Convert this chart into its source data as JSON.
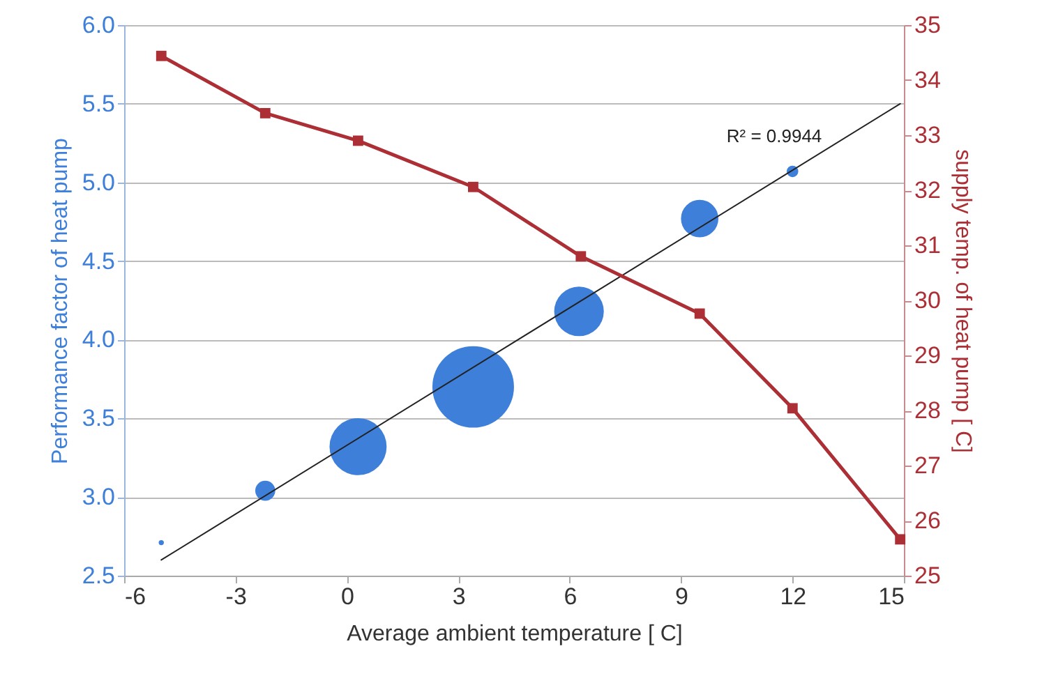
{
  "chart_data": {
    "type": "bubble",
    "xlabel": "Average ambient temperature [ C]",
    "ylabel": "Performance factor of heat pump",
    "y2label": "supply temp. of heat pump [ C]",
    "xlim": [
      -6,
      15
    ],
    "xticks": [
      -6,
      -3,
      0,
      3,
      6,
      9,
      12,
      15
    ],
    "ylim": [
      2.5,
      6.0
    ],
    "yticks": [
      {
        "value": 2.5,
        "label": "2.5"
      },
      {
        "value": 3,
        "label": "3.0"
      },
      {
        "value": 3.5,
        "label": "3.5"
      },
      {
        "value": 4,
        "label": "4.0"
      },
      {
        "value": 4.5,
        "label": "4.5"
      },
      {
        "value": 5,
        "label": "5.0"
      },
      {
        "value": 5.5,
        "label": "5.5"
      },
      {
        "value": 6,
        "label": "6.0"
      }
    ],
    "y2lim": [
      25,
      35
    ],
    "y2ticks": [
      25,
      26,
      27,
      28,
      29,
      30,
      31,
      32,
      33,
      34,
      35
    ],
    "grid": "y",
    "legend": false,
    "series": [
      {
        "color": "#3d7fd9",
        "marker": "circle",
        "x": [
          -5,
          -2.2,
          0.3,
          3.4,
          6.25,
          9.5,
          12
        ],
        "values": [
          2.71,
          3.04,
          3.32,
          3.7,
          4.18,
          4.77,
          5.07
        ],
        "sizes": [
          0.004,
          0.06,
          0.49,
          1,
          0.37,
          0.21,
          0.02
        ]
      },
      {
        "type": "line",
        "color": "#222222",
        "marker": "none",
        "x": [
          -5,
          14.9
        ],
        "values": [
          2.6,
          5.5
        ]
      },
      {
        "type": "line",
        "axis": "y2",
        "color": "#ac2f35",
        "marker": "square",
        "x": [
          -5,
          -2.2,
          0.3,
          3.4,
          6.3,
          9.5,
          12,
          14.9
        ],
        "values": [
          34.44,
          33.4,
          32.9,
          32.06,
          30.8,
          29.76,
          28.04,
          25.66
        ]
      }
    ],
    "annotations": [
      "R² = 0.9944"
    ]
  }
}
